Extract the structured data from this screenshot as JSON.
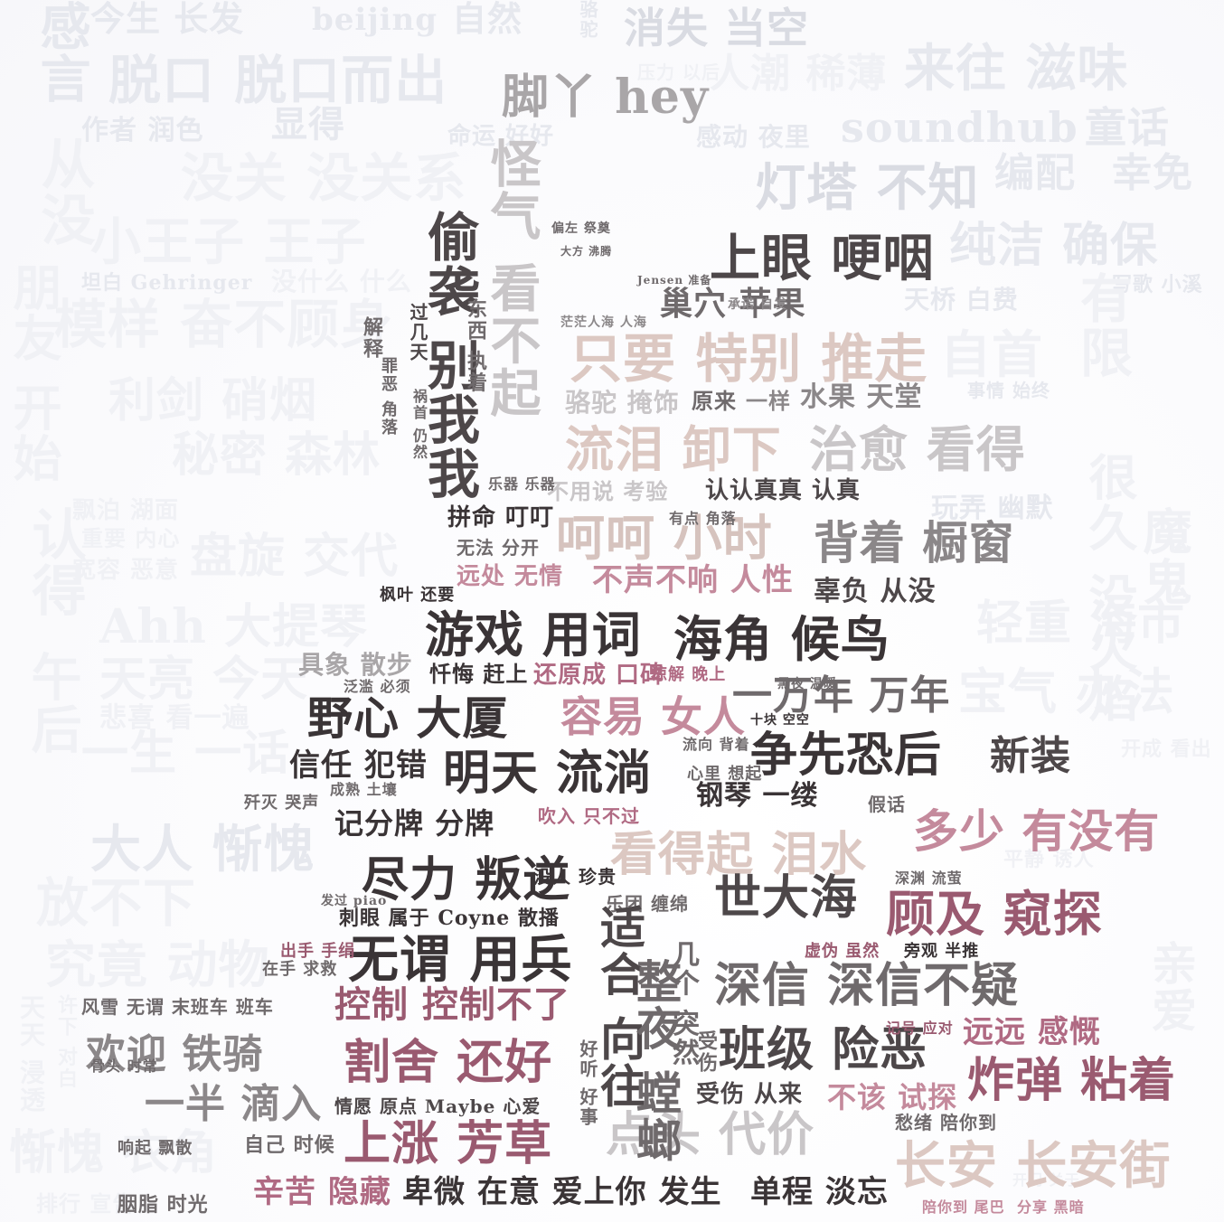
{
  "words": {
    "w1": "今生 长发",
    "w2": "beijing",
    "w3": "自然",
    "w4": "消失 当空",
    "w5": "脱口 脱口而出",
    "w6": "来往 滋味",
    "w7": "脚丫 hey",
    "w8": "作者 润色",
    "w9": "显得",
    "w10": "命运 好好",
    "w11": "soundhub",
    "w12": "童话",
    "w13": "没关 没关系",
    "w14": "灯塔 不知",
    "w15": "编配",
    "w16": "幸免",
    "w17": "小王子 王子",
    "w18": "坦白 Gehringer",
    "w19": "没什么 什么",
    "w20": "上眼 哽咽",
    "w21": "纯洁 确保",
    "w22": "巢穴 苹果",
    "w23": "模样 奋不顾身",
    "w24": "只要 特别 推走",
    "w25": "自首",
    "w26": "利剑 硝烟",
    "w27": "水果 天堂",
    "w28": "原来",
    "w29": "一样",
    "w30": "秘密 森林",
    "w31": "流泪 卸下",
    "w32": "治愈 看得",
    "w33": "认认真真 认真",
    "w34": "拼命 叮叮",
    "w35": "呵呵 小时",
    "w36": "背着 橱窗",
    "w37": "盘旋 交代",
    "w38": "远处 无情",
    "w39": "不声不响 人性",
    "w40": "辜负 从没",
    "w41": "枫叶 还要",
    "w42": "游戏 用词",
    "w43": "海角 候鸟",
    "w44": "Ahh 大提琴",
    "w45": "轻重 海市",
    "w46": "具象 散步",
    "w47": "忏悔 赶上",
    "w48": "还原成 口碑",
    "w49": "一万年 万年",
    "w50": "天亮 今天",
    "w51": "野心 大厦",
    "w52": "容易 女人",
    "w53": "宝气 办法",
    "w54": "信任 犯错",
    "w55": "明天 流淌",
    "w56": "争先恐后",
    "w57": "新装",
    "w58": "钢琴 一缕",
    "w59": "记分牌 分牌",
    "w60": "吹入 只不过",
    "w61": "看得起 泪水",
    "w62": "多少 有没有",
    "w63": "大人 惭愧",
    "w64": "尽力 叛逆",
    "w65": "世大海",
    "w66": "顾及 窥探",
    "w67": "放不下",
    "w68": "刺眼 属于 Coyne 散播",
    "w69": "无谓 用兵",
    "w70": "深信 深信不疑",
    "w71": "究竟 动物",
    "w72": "控制 控制不了",
    "w73": "远远 感慨",
    "w74": "欢迎 铁骑",
    "w75": "割舍 还好",
    "w76": "班级 险恶",
    "w77": "炸弹 粘着",
    "w78": "一半 滴入",
    "w79": "情愿 原点 Maybe 心爱",
    "w80": "受伤 从来",
    "w81": "不该 试探",
    "w82": "上涨 芳草",
    "w83": "点头 代价",
    "w84": "惭愧 衣角",
    "w85": "长安 长安街",
    "w86": "辛苦 隐藏",
    "w87": "卑微 在意 爱上你 发生",
    "w88": "单程 淡忘",
    "w89": "胭脂 时光",
    "w90": "风雪 无谓 末班车 班车",
    "w91": "自己 时候",
    "w92": "在手 求救",
    "w93": "出手 手绢",
    "w94": "虚伪 虽然",
    "w95": "旁观 半推",
    "w96": "愁绪 陪你到",
    "w97": "陪你到 尾巴",
    "w98": "分享 黑暗",
    "w99": "乐器 乐器",
    "w100": "有点 角落",
    "w101": "不用说 考验",
    "w102": "驼驼 掩饰",
    "w103": "偷袭 别我我",
    "w104": "怪气 看不起",
    "w105": "无法 分开",
    "w106": "解释",
    "w107": "乐团 缠绵",
    "w108": "适合 向往",
    "w109": "整夜 螳螂",
    "w110": "几个 突然",
    "w111": "从没",
    "w112": "朋友 开始",
    "w113": "认得",
    "w114": "午后",
    "w115": "很久 没火焰",
    "w116": "魔鬼",
    "w117": "有限",
    "w118": "感言",
    "w119": "人潮 稀薄",
    "w120": "感动 夜里",
    "w121": "压力 以后",
    "w122": "事情 始终",
    "w123": "天桥 白费",
    "w124": "写歌 小溪",
    "w125": "玩弄 幽默",
    "w126": "重要 内心",
    "w127": "宽容 恶意",
    "w128": "飘泊 湖面",
    "w129": "悲喜 看一遍",
    "w130": "一生 一话",
    "w131": "平静 诱人",
    "w132": "开成 看出",
    "w133": "亲爱",
    "w134": "天天 浸透",
    "w135": "许下 对白",
    "w136": "排行 宣告",
    "w137": "开门 关于",
    "w138": "骨头 时常",
    "w139": "响起 飘散",
    "w140": "泛滥 必须",
    "w141": "受伤",
    "w142": "偏左 祭奠",
    "w143": "歼灭 哭声",
    "w144": "成熟 土壤",
    "w145": "心里 想起",
    "w146": "假话",
    "w147": "流向 背着",
    "w148": "谅解 晚上",
    "w149": "没人 珍贵",
    "w150": "发过 piao",
    "w151": "好听 好事",
    "w152": "深渊 流萤",
    "w153": "记号 应对",
    "w154": "承诺 自发",
    "w155": "骆驼",
    "w156": "罪恶 角落",
    "w157": "过几天",
    "w158": "祸首 仍然",
    "w159": "东西 执着",
    "w160": "骆驼 掩饰",
    "w161": "Jensen 准备",
    "w162": "大方 沸腾",
    "w163": "茫茫人海 人海",
    "w164": "十块 空空",
    "w165": "黑夜 温暖"
  }
}
